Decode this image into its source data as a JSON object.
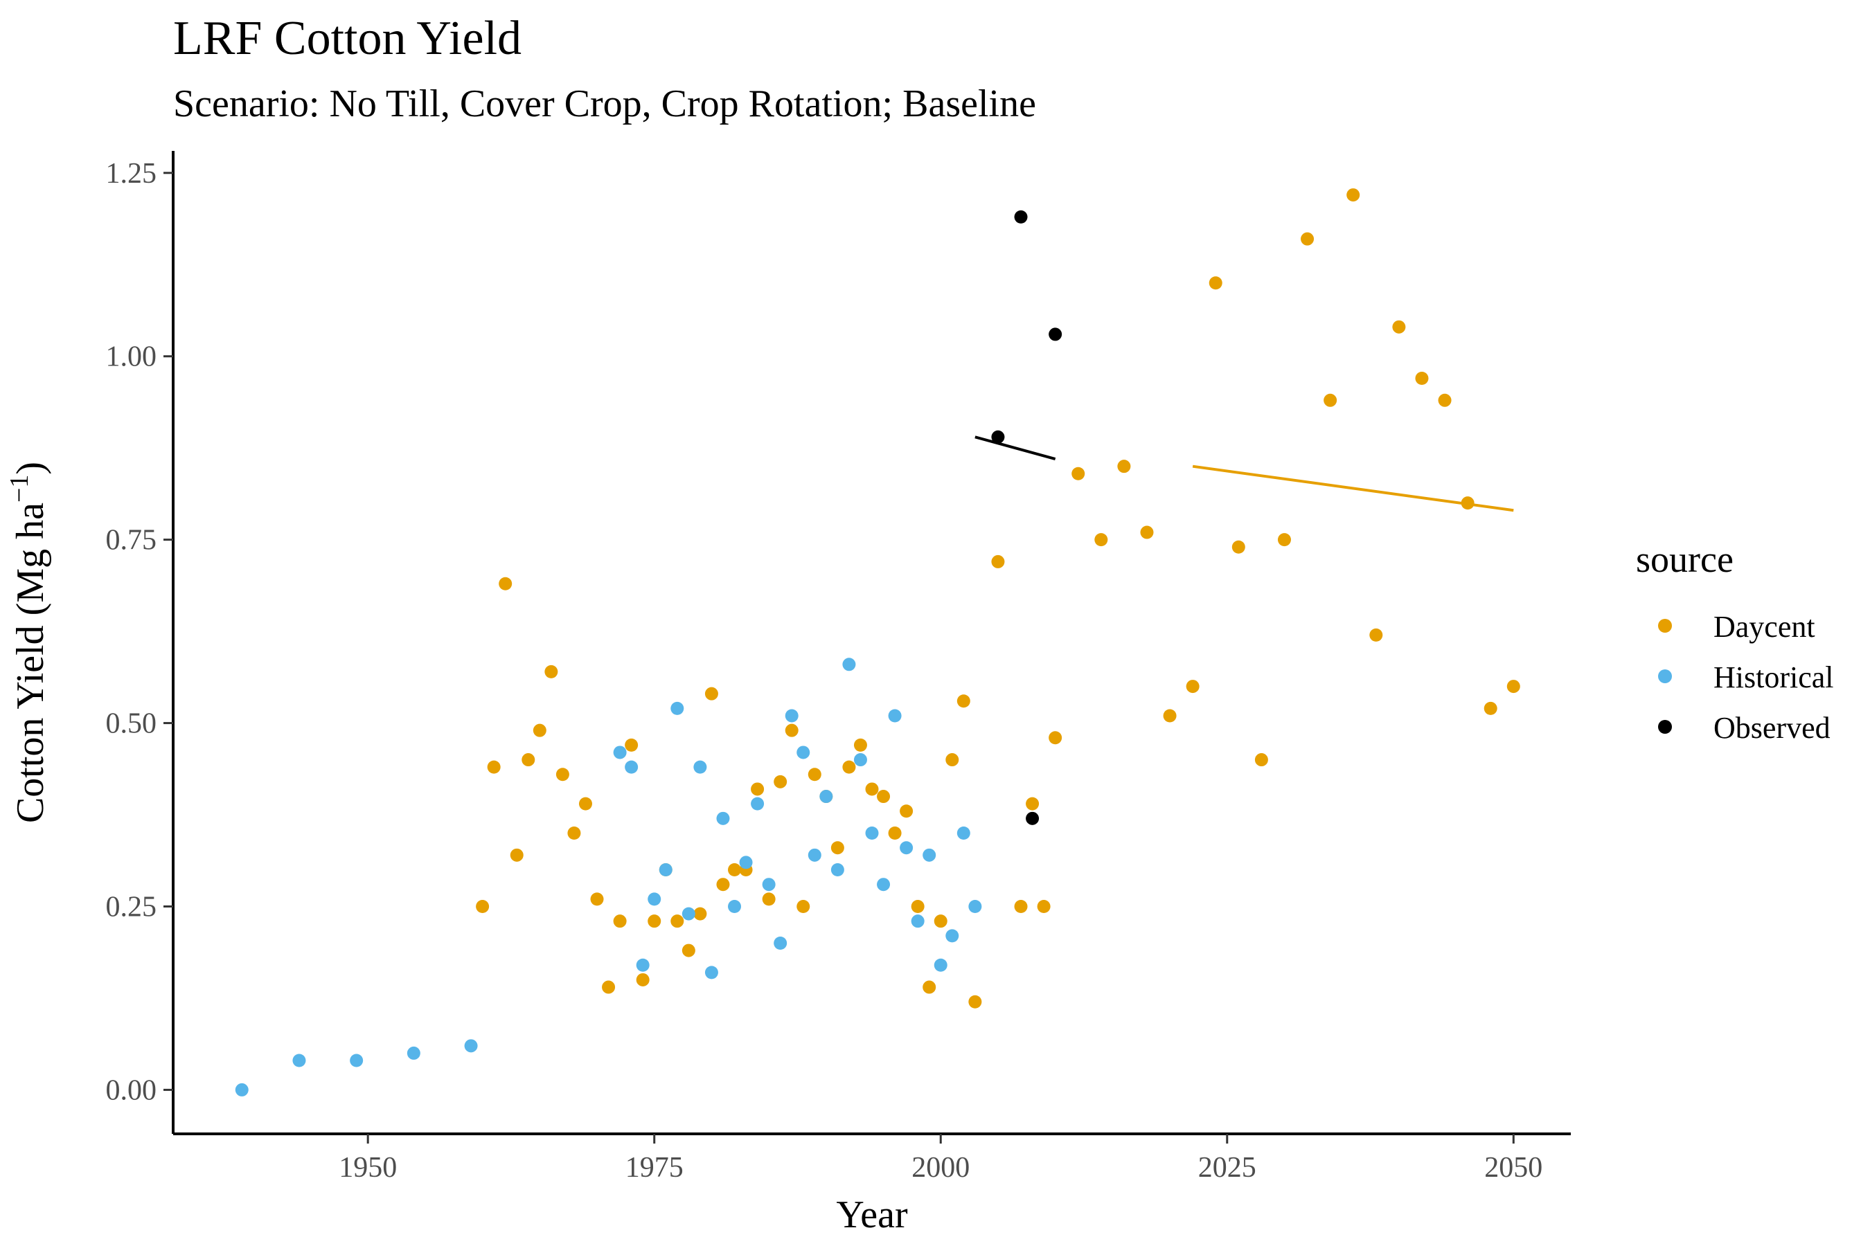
{
  "chart_data": {
    "type": "scatter",
    "title": "LRF Cotton Yield",
    "subtitle": "Scenario: No Till, Cover Crop, Crop Rotation; Baseline",
    "xlabel": "Year",
    "ylabel_main": "Cotton Yield (Mg ha",
    "ylabel_sup": "−1",
    "ylabel_close": ")",
    "xlim": [
      1933,
      2055
    ],
    "ylim": [
      -0.06,
      1.28
    ],
    "x_ticks": [
      1950,
      1975,
      2000,
      2025,
      2050
    ],
    "y_ticks": [
      0.0,
      0.25,
      0.5,
      0.75,
      1.0,
      1.25
    ],
    "y_tick_labels": [
      "0.00",
      "0.25",
      "0.50",
      "0.75",
      "1.00",
      "1.25"
    ],
    "grid": false,
    "legend": {
      "title": "source",
      "position": "right"
    },
    "series": [
      {
        "name": "Daycent",
        "color": "#E69F00",
        "points": [
          [
            1960,
            0.25
          ],
          [
            1961,
            0.44
          ],
          [
            1962,
            0.69
          ],
          [
            1963,
            0.32
          ],
          [
            1964,
            0.45
          ],
          [
            1965,
            0.49
          ],
          [
            1966,
            0.57
          ],
          [
            1967,
            0.43
          ],
          [
            1968,
            0.35
          ],
          [
            1969,
            0.39
          ],
          [
            1970,
            0.26
          ],
          [
            1971,
            0.14
          ],
          [
            1972,
            0.23
          ],
          [
            1973,
            0.47
          ],
          [
            1974,
            0.15
          ],
          [
            1975,
            0.23
          ],
          [
            1976,
            0.3
          ],
          [
            1977,
            0.23
          ],
          [
            1978,
            0.19
          ],
          [
            1979,
            0.24
          ],
          [
            1980,
            0.54
          ],
          [
            1981,
            0.28
          ],
          [
            1982,
            0.3
          ],
          [
            1983,
            0.3
          ],
          [
            1984,
            0.41
          ],
          [
            1985,
            0.26
          ],
          [
            1986,
            0.42
          ],
          [
            1987,
            0.49
          ],
          [
            1988,
            0.25
          ],
          [
            1989,
            0.43
          ],
          [
            1990,
            0.4
          ],
          [
            1991,
            0.33
          ],
          [
            1992,
            0.44
          ],
          [
            1993,
            0.47
          ],
          [
            1994,
            0.41
          ],
          [
            1995,
            0.4
          ],
          [
            1996,
            0.35
          ],
          [
            1997,
            0.38
          ],
          [
            1998,
            0.25
          ],
          [
            1999,
            0.14
          ],
          [
            2000,
            0.23
          ],
          [
            2001,
            0.45
          ],
          [
            2002,
            0.53
          ],
          [
            2003,
            0.12
          ],
          [
            2005,
            0.72
          ],
          [
            2007,
            0.25
          ],
          [
            2008,
            0.39
          ],
          [
            2009,
            0.25
          ],
          [
            2010,
            0.48
          ],
          [
            2012,
            0.84
          ],
          [
            2014,
            0.75
          ],
          [
            2016,
            0.85
          ],
          [
            2018,
            0.76
          ],
          [
            2020,
            0.51
          ],
          [
            2022,
            0.55
          ],
          [
            2024,
            1.1
          ],
          [
            2026,
            0.74
          ],
          [
            2028,
            0.45
          ],
          [
            2030,
            0.75
          ],
          [
            2032,
            1.16
          ],
          [
            2034,
            0.94
          ],
          [
            2036,
            1.22
          ],
          [
            2038,
            0.62
          ],
          [
            2040,
            1.04
          ],
          [
            2042,
            0.97
          ],
          [
            2044,
            0.94
          ],
          [
            2046,
            0.8
          ],
          [
            2048,
            0.52
          ],
          [
            2050,
            0.55
          ]
        ]
      },
      {
        "name": "Historical",
        "color": "#56B4E9",
        "points": [
          [
            1939,
            0.0
          ],
          [
            1944,
            0.04
          ],
          [
            1949,
            0.04
          ],
          [
            1954,
            0.05
          ],
          [
            1959,
            0.06
          ],
          [
            1972,
            0.46
          ],
          [
            1973,
            0.44
          ],
          [
            1974,
            0.17
          ],
          [
            1975,
            0.26
          ],
          [
            1976,
            0.3
          ],
          [
            1977,
            0.52
          ],
          [
            1978,
            0.24
          ],
          [
            1979,
            0.44
          ],
          [
            1980,
            0.16
          ],
          [
            1981,
            0.37
          ],
          [
            1982,
            0.25
          ],
          [
            1983,
            0.31
          ],
          [
            1984,
            0.39
          ],
          [
            1985,
            0.28
          ],
          [
            1986,
            0.2
          ],
          [
            1987,
            0.51
          ],
          [
            1988,
            0.46
          ],
          [
            1989,
            0.32
          ],
          [
            1990,
            0.4
          ],
          [
            1991,
            0.3
          ],
          [
            1992,
            0.58
          ],
          [
            1993,
            0.45
          ],
          [
            1994,
            0.35
          ],
          [
            1995,
            0.28
          ],
          [
            1996,
            0.51
          ],
          [
            1997,
            0.33
          ],
          [
            1998,
            0.23
          ],
          [
            1999,
            0.32
          ],
          [
            2000,
            0.17
          ],
          [
            2001,
            0.21
          ],
          [
            2002,
            0.35
          ],
          [
            2003,
            0.25
          ]
        ]
      },
      {
        "name": "Observed",
        "color": "#000000",
        "points": [
          [
            2005,
            0.89
          ],
          [
            2007,
            1.19
          ],
          [
            2008,
            0.37
          ],
          [
            2010,
            1.03
          ]
        ]
      }
    ],
    "trend_lines": [
      {
        "series": "Observed",
        "color": "#000000",
        "x": [
          2003,
          2010
        ],
        "y": [
          0.89,
          0.86
        ]
      },
      {
        "series": "Daycent",
        "color": "#E69F00",
        "x": [
          2022,
          2050
        ],
        "y": [
          0.85,
          0.79
        ]
      }
    ]
  }
}
